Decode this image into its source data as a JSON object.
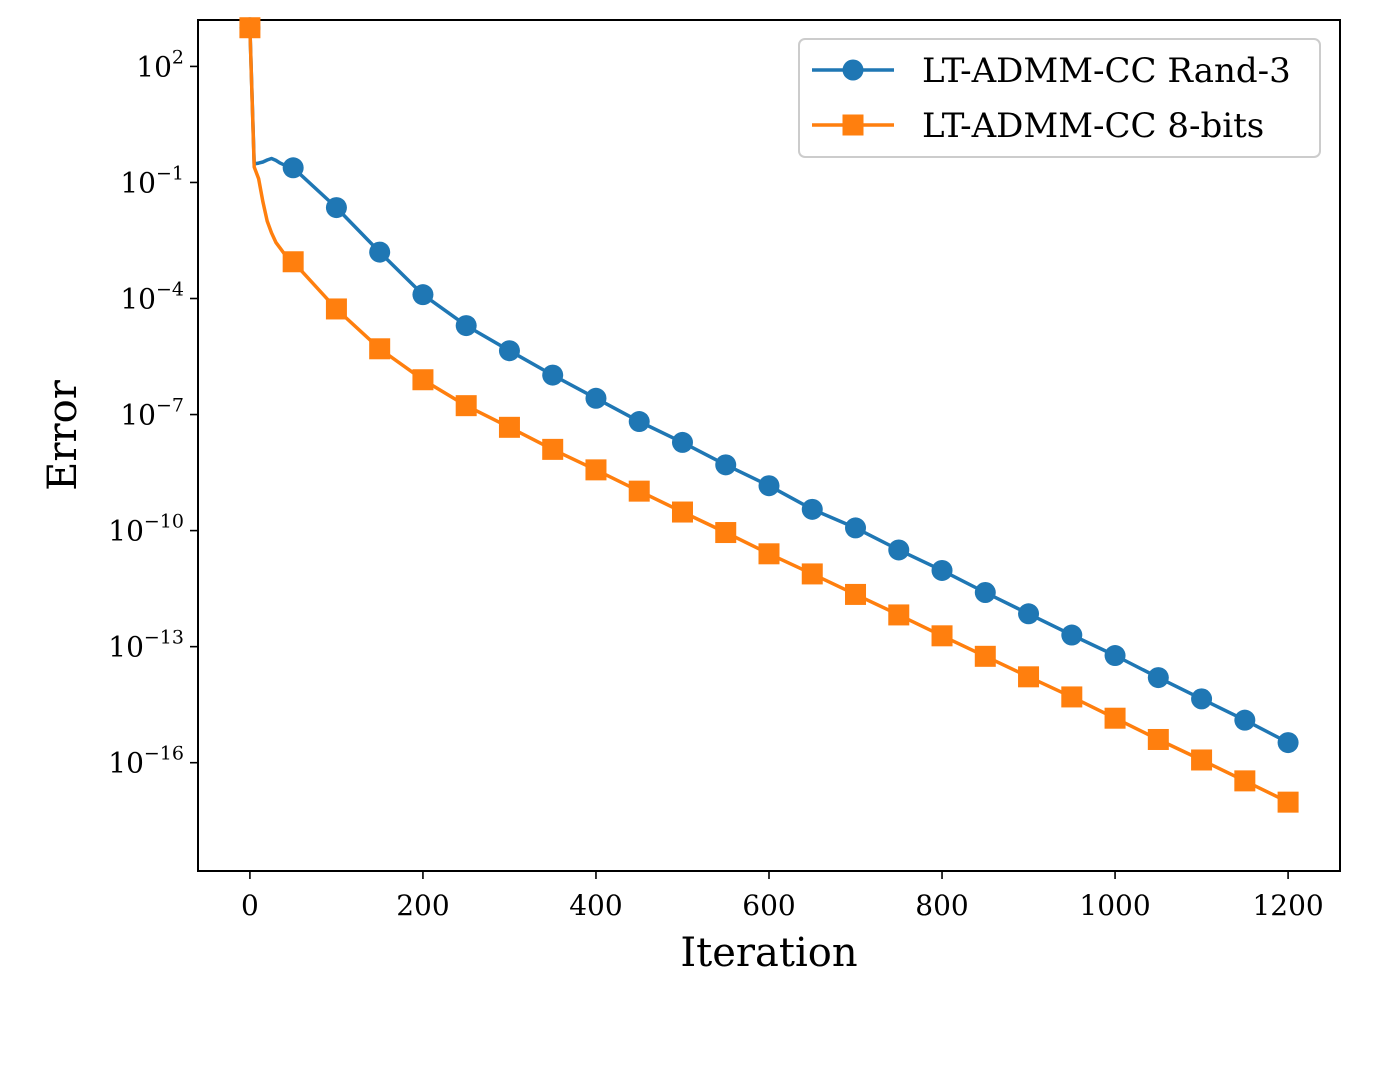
{
  "chart_data": {
    "type": "line",
    "title": "",
    "xlabel": "Iteration",
    "ylabel": "Error",
    "xlim": [
      -60,
      1260
    ],
    "ylim_log10": [
      -18.8,
      3.2
    ],
    "yscale": "log",
    "grid": false,
    "legend_position": "top-right",
    "xticks": [
      0,
      200,
      400,
      600,
      800,
      1000,
      1200
    ],
    "xtick_labels": [
      "0",
      "200",
      "400",
      "600",
      "800",
      "1000",
      "1200"
    ],
    "yticks": [
      {
        "exp": 2,
        "base": "10",
        "sup": "2"
      },
      {
        "exp": -1,
        "base": "10",
        "sup": "−1"
      },
      {
        "exp": -4,
        "base": "10",
        "sup": "−4"
      },
      {
        "exp": -7,
        "base": "10",
        "sup": "−7"
      },
      {
        "exp": -10,
        "base": "10",
        "sup": "−10"
      },
      {
        "exp": -13,
        "base": "10",
        "sup": "−13"
      },
      {
        "exp": -16,
        "base": "10",
        "sup": "−16"
      }
    ],
    "series": [
      {
        "name": "LT-ADMM-CC Rand-3",
        "color": "#1f77b4",
        "marker": "circle",
        "line_x": [
          0,
          5,
          10,
          15,
          20,
          25,
          30,
          35,
          40,
          45,
          50
        ],
        "line_log10y": [
          3.0,
          -0.52,
          -0.5,
          -0.47,
          -0.42,
          -0.38,
          -0.43,
          -0.5,
          -0.55,
          -0.6,
          -0.62
        ],
        "x": [
          0,
          50,
          100,
          150,
          200,
          250,
          300,
          350,
          400,
          450,
          500,
          550,
          600,
          650,
          700,
          750,
          800,
          850,
          900,
          950,
          1000,
          1050,
          1100,
          1150,
          1200
        ],
        "log10y": [
          3.0,
          -0.62,
          -1.65,
          -2.8,
          -3.9,
          -4.7,
          -5.35,
          -5.98,
          -6.58,
          -7.18,
          -7.72,
          -8.3,
          -8.84,
          -9.45,
          -9.93,
          -10.5,
          -11.03,
          -11.6,
          -12.15,
          -12.7,
          -13.23,
          -13.8,
          -14.35,
          -14.9,
          -15.48
        ],
        "y": [
          1000,
          0.24,
          0.022,
          0.0016,
          0.00013,
          2e-05,
          4.5e-06,
          1e-06,
          2.6e-07,
          6.6e-08,
          1.9e-08,
          5e-09,
          1.4e-09,
          3.5e-10,
          1.2e-10,
          3.2e-11,
          9.3e-12,
          2.5e-12,
          7.1e-13,
          2e-13,
          5.9e-14,
          1.6e-14,
          4.5e-15,
          1.3e-15,
          3.3e-16
        ]
      },
      {
        "name": "LT-ADMM-CC 8-bits",
        "color": "#ff7f0e",
        "marker": "square",
        "line_x": [
          0,
          5,
          10,
          15,
          20,
          25,
          30,
          35,
          40,
          45,
          50
        ],
        "line_log10y": [
          3.0,
          -0.6,
          -0.9,
          -1.5,
          -2.0,
          -2.3,
          -2.55,
          -2.7,
          -2.85,
          -2.95,
          -3.05
        ],
        "x": [
          0,
          50,
          100,
          150,
          200,
          250,
          300,
          350,
          400,
          450,
          500,
          550,
          600,
          650,
          700,
          750,
          800,
          850,
          900,
          950,
          1000,
          1050,
          1100,
          1150,
          1200
        ],
        "log10y": [
          3.0,
          -3.05,
          -4.27,
          -5.3,
          -6.1,
          -6.77,
          -7.33,
          -7.9,
          -8.43,
          -8.98,
          -9.52,
          -10.05,
          -10.6,
          -11.12,
          -11.65,
          -12.18,
          -12.72,
          -13.25,
          -13.78,
          -14.3,
          -14.85,
          -15.4,
          -15.93,
          -16.47,
          -17.02
        ],
        "y": [
          1000,
          0.00089,
          5.4e-05,
          5e-06,
          7.9e-07,
          1.7e-07,
          4.7e-08,
          1.3e-08,
          3.7e-09,
          1e-09,
          3e-10,
          8.9e-11,
          2.5e-11,
          7.6e-12,
          2.2e-12,
          6.6e-13,
          1.9e-13,
          5.6e-14,
          1.7e-14,
          5e-15,
          1.4e-15,
          4e-16,
          1.2e-16,
          3.4e-17,
          9.5e-18
        ]
      }
    ]
  }
}
